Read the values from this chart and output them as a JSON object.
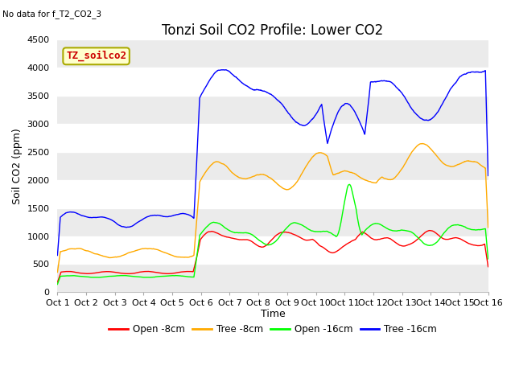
{
  "title": "Tonzi Soil CO2 Profile: Lower CO2",
  "subtitle": "No data for f_T2_CO2_3",
  "ylabel": "Soil CO2 (ppm)",
  "xlabel": "Time",
  "legend_label": "TZ_soilco2",
  "ylim": [
    0,
    4500
  ],
  "xlim": [
    0,
    15
  ],
  "xtick_labels": [
    "Oct 1",
    "Oct 2",
    "Oct 3",
    "Oct 4",
    "Oct 5",
    "Oct 6",
    "Oct 7",
    "Oct 8",
    "Oct 9",
    "Oct 10",
    "Oct 11",
    "Oct 12",
    "Oct 13",
    "Oct 14",
    "Oct 15",
    "Oct 16"
  ],
  "ytick_vals": [
    0,
    500,
    1000,
    1500,
    2000,
    2500,
    3000,
    3500,
    4000,
    4500
  ],
  "series_colors": {
    "open8": "#ff0000",
    "tree8": "#ffaa00",
    "open16": "#00ff00",
    "tree16": "#0000ff"
  },
  "series_labels": {
    "open8": "Open -8cm",
    "tree8": "Tree -8cm",
    "open16": "Open -16cm",
    "tree16": "Tree -16cm"
  },
  "background_color": "#ffffff",
  "plot_bg_color": "#ffffff",
  "grid_color": "#e0e0e0",
  "title_fontsize": 12,
  "label_fontsize": 9,
  "tick_fontsize": 8
}
